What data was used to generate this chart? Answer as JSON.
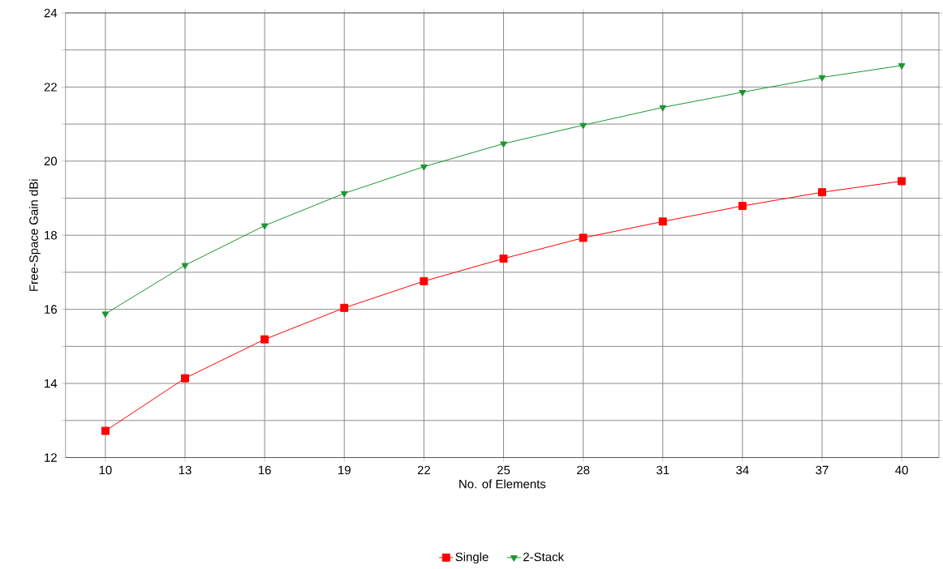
{
  "chart_data": {
    "type": "line",
    "xlabel": "No. of Elements",
    "ylabel": "Free-Space Gain dBi",
    "x": [
      10,
      13,
      16,
      19,
      22,
      25,
      28,
      31,
      34,
      37,
      40
    ],
    "series": [
      {
        "name": "Single",
        "color": "#ff0000",
        "marker": "square",
        "values": [
          12.72,
          14.14,
          15.19,
          16.04,
          16.76,
          17.37,
          17.93,
          18.37,
          18.79,
          19.16,
          19.46
        ]
      },
      {
        "name": "2-Stack",
        "color": "#1a9632",
        "marker": "triangle",
        "values": [
          15.88,
          17.19,
          18.26,
          19.13,
          19.85,
          20.47,
          20.97,
          21.45,
          21.86,
          22.26,
          22.58
        ]
      }
    ],
    "xlim": [
      8.5,
      41.4
    ],
    "xticks": [
      10,
      13,
      16,
      19,
      22,
      25,
      28,
      31,
      34,
      37,
      40
    ],
    "ylim": [
      12,
      24
    ],
    "yticks": [
      12,
      {
        "value": 13,
        "label": null
      },
      14,
      {
        "value": 15,
        "label": null
      },
      16,
      {
        "value": 17,
        "label": null
      },
      18,
      {
        "value": 19,
        "label": null
      },
      20,
      {
        "value": 21,
        "label": null
      },
      22,
      {
        "value": 23,
        "label": null
      },
      24
    ],
    "grid": true,
    "legend": "bottom",
    "line_style": "solid"
  }
}
